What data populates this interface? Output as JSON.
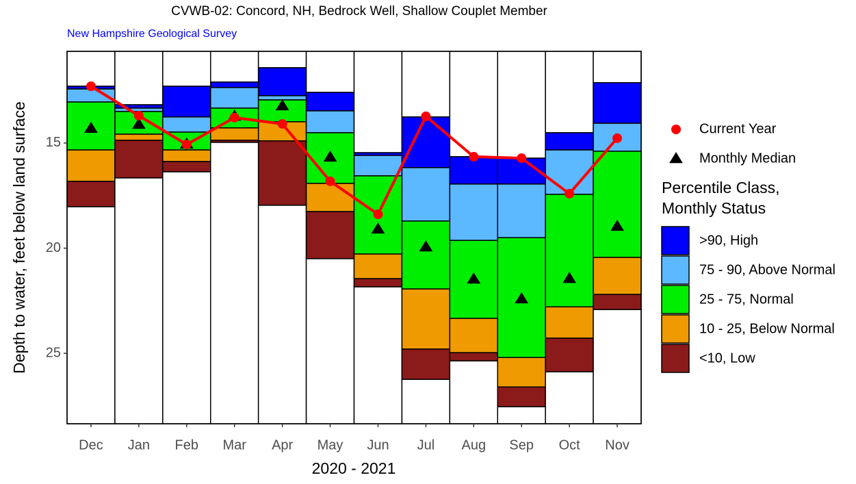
{
  "chart_data": {
    "type": "percentile_bar",
    "title": "CVWB-02: Concord, NH, Bedrock Well, Shallow Couplet Member",
    "subtitle": "New Hampshire Geological Survey",
    "y_label": "Depth to water, feet below land surface",
    "x_label": "2020 - 2021",
    "categories": [
      "Dec",
      "Jan",
      "Feb",
      "Mar",
      "Apr",
      "May",
      "Jun",
      "Jul",
      "Aug",
      "Sep",
      "Oct",
      "Nov"
    ],
    "ylim": [
      10.64,
      28.35
    ],
    "y_reversed": true,
    "yticks": [
      15,
      20,
      25
    ],
    "base": [
      12.3,
      13.18,
      12.3,
      12.1,
      11.42,
      12.59,
      15.46,
      13.76,
      15.65,
      15.72,
      14.51,
      12.13
    ],
    "legend_title": [
      "Percentile Class,",
      "Monthly Status"
    ],
    "series": [
      {
        "name": ">90, High",
        "color": "#0000ff",
        "values": [
          0.13,
          0.16,
          1.46,
          0.26,
          1.33,
          0.88,
          0.13,
          2.41,
          1.3,
          1.23,
          0.82,
          1.93
        ]
      },
      {
        "name": "75 - 90, Above Normal",
        "color": "#5cb8ff",
        "values": [
          0.62,
          0.16,
          0.72,
          0.98,
          0.2,
          1.04,
          0.97,
          2.54,
          2.68,
          2.55,
          2.11,
          1.33
        ]
      },
      {
        "name": "25 - 75, Normal",
        "color": "#00ee00",
        "values": [
          2.28,
          1.08,
          0.85,
          0.94,
          1.04,
          2.41,
          3.72,
          3.23,
          3.71,
          5.7,
          5.35,
          5.05
        ]
      },
      {
        "name": "10 - 25, Below Normal",
        "color": "#ee9a00",
        "values": [
          1.49,
          0.29,
          0.55,
          0.59,
          0.91,
          1.34,
          1.17,
          2.86,
          1.63,
          1.4,
          1.49,
          1.76
        ]
      },
      {
        "name": "<10, Low",
        "color": "#8b1a1a",
        "values": [
          1.21,
          1.79,
          0.49,
          0.1,
          3.06,
          2.24,
          0.39,
          1.44,
          0.39,
          0.94,
          1.6,
          0.72
        ]
      }
    ],
    "current_year": {
      "name": "Current Year",
      "color": "#ff0000",
      "values": [
        12.3,
        13.7,
        15.07,
        13.79,
        14.09,
        16.82,
        18.39,
        13.73,
        15.65,
        15.72,
        17.41,
        14.77
      ]
    },
    "median": {
      "name": "Monthly Median",
      "color": "#000000",
      "values": [
        14.28,
        14.09,
        15.03,
        13.7,
        13.21,
        15.65,
        19.07,
        19.92,
        21.45,
        22.39,
        21.42,
        18.94
      ]
    }
  }
}
